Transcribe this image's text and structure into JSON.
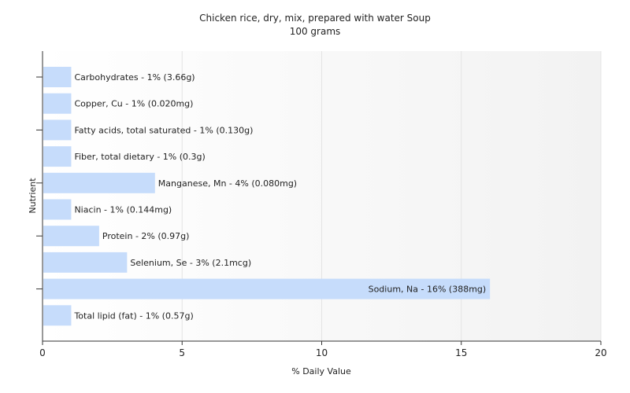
{
  "chart_data": {
    "type": "bar",
    "orientation": "horizontal",
    "title": "Chicken rice, dry, mix, prepared with water Soup",
    "subtitle": "100 grams",
    "xlabel": "% Daily Value",
    "ylabel": "Nutrient",
    "xlim": [
      0,
      20
    ],
    "xticks": [
      0,
      5,
      10,
      15,
      20
    ],
    "grid": true,
    "bar_color": "#c6dcfb",
    "categories": [
      "Carbohydrates",
      "Copper, Cu",
      "Fatty acids, total saturated",
      "Fiber, total dietary",
      "Manganese, Mn",
      "Niacin",
      "Protein",
      "Selenium, Se",
      "Sodium, Na",
      "Total lipid (fat)"
    ],
    "values": [
      1,
      1,
      1,
      1,
      4,
      1,
      2,
      3,
      16,
      1
    ],
    "data_labels": [
      "Carbohydrates - 1% (3.66g)",
      "Copper, Cu - 1% (0.020mg)",
      "Fatty acids, total saturated - 1% (0.130g)",
      "Fiber, total dietary - 1% (0.3g)",
      "Manganese, Mn - 4% (0.080mg)",
      "Niacin - 1% (0.144mg)",
      "Protein - 2% (0.97g)",
      "Selenium, Se - 3% (2.1mcg)",
      "Sodium, Na - 16% (388mg)",
      "Total lipid (fat) - 1% (0.57g)"
    ]
  }
}
